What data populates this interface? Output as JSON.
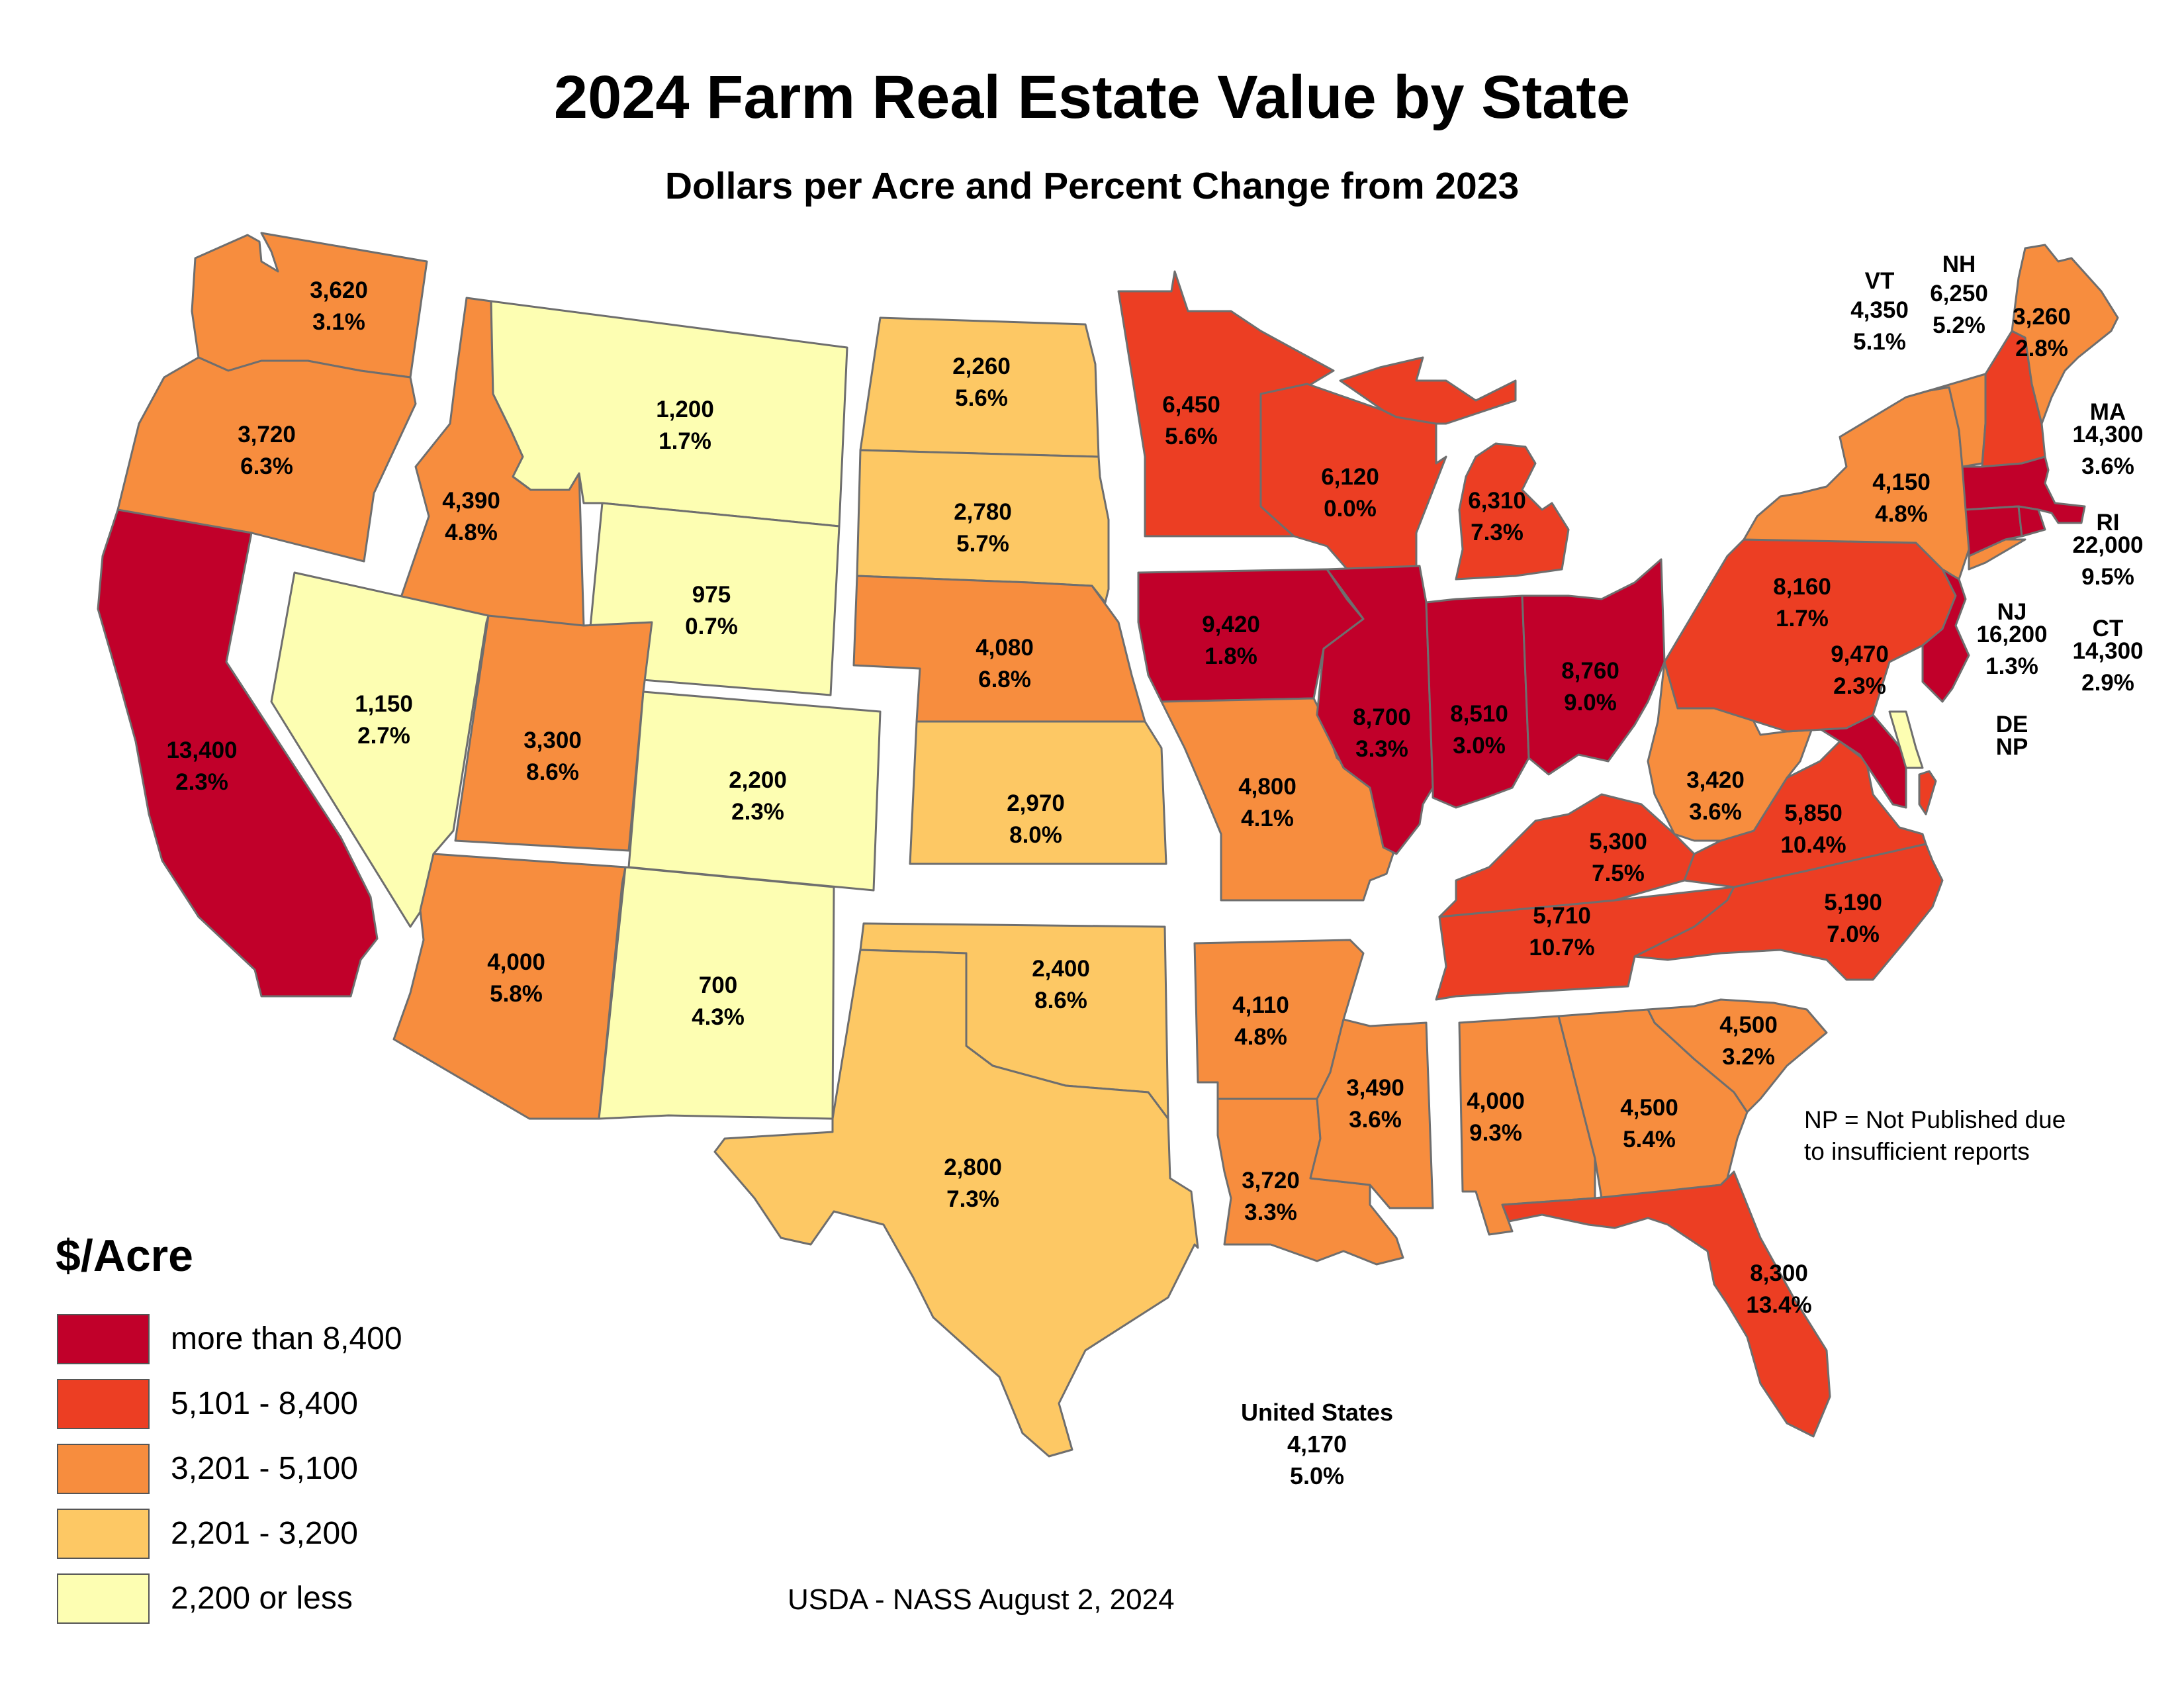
{
  "title": "2024 Farm Real Estate Value by State",
  "subtitle": "Dollars per Acre and Percent Change from 2023",
  "legend": {
    "title": "$/Acre",
    "items": [
      {
        "label": "more than 8,400",
        "color": "#c1002a"
      },
      {
        "label": "5,101 - 8,400",
        "color": "#ec3e23"
      },
      {
        "label": "3,201 - 5,100",
        "color": "#f78d3e"
      },
      {
        "label": "2,201 - 3,200",
        "color": "#fdc864"
      },
      {
        "label": "2,200 or less",
        "color": "#fdfeb2"
      }
    ]
  },
  "note": {
    "line1": "NP = Not Published due",
    "line2": "to insufficient reports"
  },
  "source": "USDA - NASS August 2, 2024",
  "us_total": {
    "name": "United States",
    "value": "4,170",
    "change": "5.0%"
  },
  "states": {
    "WA": {
      "value": "3,620",
      "change": "3.1%",
      "cls": 2
    },
    "OR": {
      "value": "3,720",
      "change": "6.3%",
      "cls": 2
    },
    "CA": {
      "value": "13,400",
      "change": "2.3%",
      "cls": 0
    },
    "ID": {
      "value": "4,390",
      "change": "4.8%",
      "cls": 2
    },
    "NV": {
      "value": "1,150",
      "change": "2.7%",
      "cls": 4
    },
    "MT": {
      "value": "1,200",
      "change": "1.7%",
      "cls": 4
    },
    "WY": {
      "value": "975",
      "change": "0.7%",
      "cls": 4
    },
    "UT": {
      "value": "3,300",
      "change": "8.6%",
      "cls": 2
    },
    "CO": {
      "value": "2,200",
      "change": "2.3%",
      "cls": 4
    },
    "AZ": {
      "value": "4,000",
      "change": "5.8%",
      "cls": 2
    },
    "NM": {
      "value": "700",
      "change": "4.3%",
      "cls": 4
    },
    "ND": {
      "value": "2,260",
      "change": "5.6%",
      "cls": 3
    },
    "SD": {
      "value": "2,780",
      "change": "5.7%",
      "cls": 3
    },
    "NE": {
      "value": "4,080",
      "change": "6.8%",
      "cls": 2
    },
    "KS": {
      "value": "2,970",
      "change": "8.0%",
      "cls": 3
    },
    "OK": {
      "value": "2,400",
      "change": "8.6%",
      "cls": 3
    },
    "TX": {
      "value": "2,800",
      "change": "7.3%",
      "cls": 3
    },
    "MN": {
      "value": "6,450",
      "change": "5.6%",
      "cls": 1
    },
    "IA": {
      "value": "9,420",
      "change": "1.8%",
      "cls": 0
    },
    "MO": {
      "value": "4,800",
      "change": "4.1%",
      "cls": 2
    },
    "AR": {
      "value": "4,110",
      "change": "4.8%",
      "cls": 2
    },
    "LA": {
      "value": "3,720",
      "change": "3.3%",
      "cls": 2
    },
    "WI": {
      "value": "6,120",
      "change": "0.0%",
      "cls": 1
    },
    "MI": {
      "value": "6,310",
      "change": "7.3%",
      "cls": 1
    },
    "IL": {
      "value": "8,700",
      "change": "3.3%",
      "cls": 0
    },
    "IN": {
      "value": "8,510",
      "change": "3.0%",
      "cls": 0
    },
    "OH": {
      "value": "8,760",
      "change": "9.0%",
      "cls": 0
    },
    "KY": {
      "value": "5,300",
      "change": "7.5%",
      "cls": 1
    },
    "TN": {
      "value": "5,710",
      "change": "10.7%",
      "cls": 1
    },
    "MS": {
      "value": "3,490",
      "change": "3.6%",
      "cls": 2
    },
    "AL": {
      "value": "4,000",
      "change": "9.3%",
      "cls": 2
    },
    "GA": {
      "value": "4,500",
      "change": "5.4%",
      "cls": 2
    },
    "FL": {
      "value": "8,300",
      "change": "13.4%",
      "cls": 1
    },
    "SC": {
      "value": "4,500",
      "change": "3.2%",
      "cls": 2
    },
    "NC": {
      "value": "5,190",
      "change": "7.0%",
      "cls": 1
    },
    "VA": {
      "value": "5,850",
      "change": "10.4%",
      "cls": 1
    },
    "WV": {
      "value": "3,420",
      "change": "3.6%",
      "cls": 2
    },
    "MD": {
      "value": "9,470",
      "change": "2.3%",
      "cls": 0
    },
    "PA": {
      "value": "8,160",
      "change": "1.7%",
      "cls": 1
    },
    "NY": {
      "value": "4,150",
      "change": "4.8%",
      "cls": 2
    },
    "VT": {
      "value": "4,350",
      "change": "5.1%",
      "cls": 2
    },
    "NH": {
      "value": "6,250",
      "change": "5.2%",
      "cls": 1
    },
    "ME": {
      "value": "3,260",
      "change": "2.8%",
      "cls": 2
    },
    "MA": {
      "value": "14,300",
      "change": "3.6%",
      "cls": 0
    },
    "RI": {
      "value": "22,000",
      "change": "9.5%",
      "cls": 0
    },
    "CT": {
      "value": "14,300",
      "change": "2.9%",
      "cls": 0
    },
    "NJ": {
      "value": "16,200",
      "change": "1.3%",
      "cls": 0
    },
    "DE": {
      "value": "NP",
      "change": "",
      "cls": 4
    }
  },
  "external_labels": {
    "VT": "VT",
    "NH": "NH",
    "MA": "MA",
    "RI": "RI",
    "NJ": "NJ",
    "CT": "CT",
    "DE": "DE"
  }
}
